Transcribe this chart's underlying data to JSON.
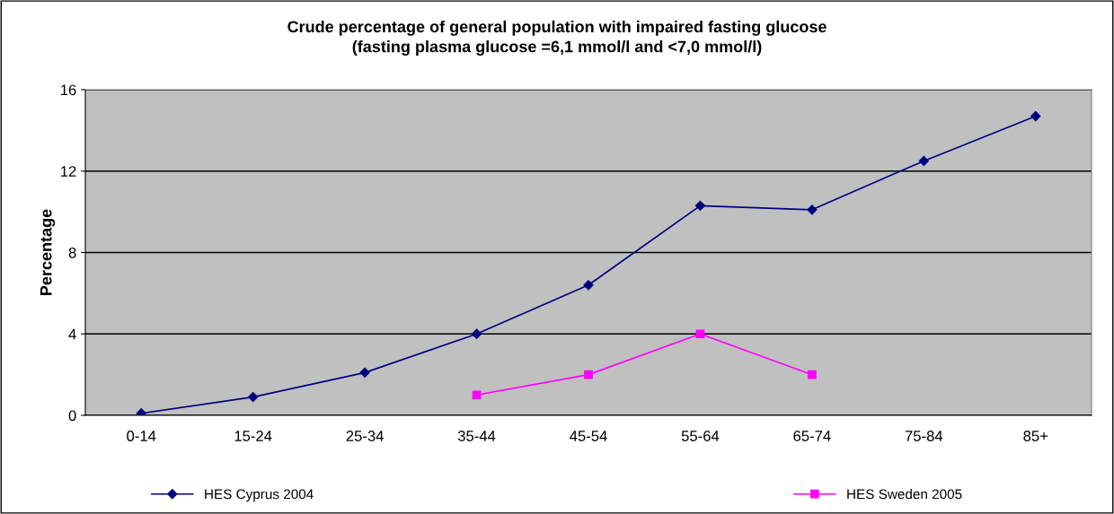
{
  "chart_data": {
    "type": "line",
    "title": "Crude percentage of general population with impaired fasting glucose\n(fasting plasma glucose =6,1 mmol/l and <7,0 mmol/l)",
    "ylabel": "Percentage",
    "categories": [
      "0-14",
      "15-24",
      "25-34",
      "35-44",
      "45-54",
      "55-64",
      "65-74",
      "75-84",
      "85+"
    ],
    "series": [
      {
        "name": "HES Cyprus 2004",
        "color": "#000080",
        "marker": "diamond",
        "values": [
          0.1,
          0.9,
          2.1,
          4.0,
          6.4,
          10.3,
          10.1,
          12.5,
          14.7
        ]
      },
      {
        "name": "HES Sweden 2005",
        "color": "#ff00ff",
        "marker": "square",
        "values": [
          null,
          null,
          null,
          1.0,
          2.0,
          4.0,
          2.0,
          null,
          null
        ]
      }
    ],
    "ylim": [
      0,
      16
    ],
    "yticks": [
      0,
      4,
      8,
      12,
      16
    ],
    "grid": "y",
    "legend": "bottom"
  }
}
